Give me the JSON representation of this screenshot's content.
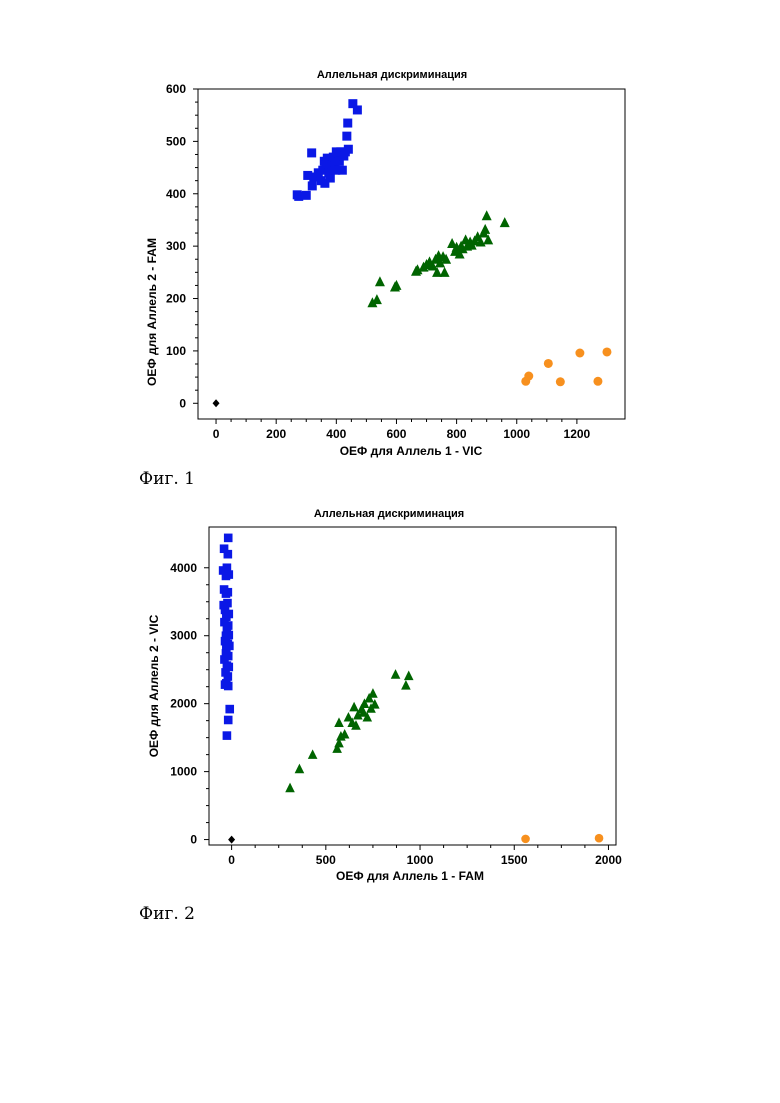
{
  "figures": [
    {
      "caption": "Фиг. 1"
    },
    {
      "caption": "Фиг. 2"
    }
  ],
  "chart_data": [
    {
      "type": "scatter",
      "title": "Аллельная дискриминация",
      "xlabel": "ОЕФ для Аллель 1 - VIC",
      "ylabel": "ОЕФ для Аллель 2 - FAM",
      "xlim": [
        -60,
        1360
      ],
      "ylim": [
        -30,
        600
      ],
      "xticks": [
        0,
        200,
        400,
        600,
        800,
        1000,
        1200
      ],
      "yticks": [
        0,
        100,
        200,
        300,
        400,
        500,
        600
      ],
      "grid": false,
      "series": [
        {
          "marker": "square",
          "color": "#0a18e6",
          "points": [
            [
              270,
              398
            ],
            [
              275,
              395
            ],
            [
              300,
              397
            ],
            [
              305,
              435
            ],
            [
              318,
              478
            ],
            [
              320,
              415
            ],
            [
              325,
              432
            ],
            [
              340,
              440
            ],
            [
              350,
              425
            ],
            [
              355,
              445
            ],
            [
              360,
              462
            ],
            [
              362,
              420
            ],
            [
              365,
              455
            ],
            [
              370,
              468
            ],
            [
              375,
              440
            ],
            [
              380,
              430
            ],
            [
              385,
              455
            ],
            [
              390,
              470
            ],
            [
              395,
              460
            ],
            [
              398,
              445
            ],
            [
              400,
              480
            ],
            [
              405,
              478
            ],
            [
              410,
              462
            ],
            [
              415,
              480
            ],
            [
              420,
              445
            ],
            [
              425,
              472
            ],
            [
              430,
              480
            ],
            [
              435,
              510
            ],
            [
              438,
              535
            ],
            [
              440,
              485
            ],
            [
              455,
              572
            ],
            [
              470,
              560
            ]
          ]
        },
        {
          "marker": "triangle",
          "color": "#006400",
          "points": [
            [
              520,
              192
            ],
            [
              535,
              198
            ],
            [
              545,
              232
            ],
            [
              595,
              222
            ],
            [
              600,
              225
            ],
            [
              665,
              252
            ],
            [
              670,
              255
            ],
            [
              690,
              260
            ],
            [
              700,
              265
            ],
            [
              710,
              270
            ],
            [
              720,
              262
            ],
            [
              730,
              275
            ],
            [
              735,
              250
            ],
            [
              740,
              282
            ],
            [
              745,
              268
            ],
            [
              755,
              280
            ],
            [
              760,
              250
            ],
            [
              765,
              275
            ],
            [
              785,
              305
            ],
            [
              795,
              290
            ],
            [
              800,
              298
            ],
            [
              810,
              285
            ],
            [
              815,
              300
            ],
            [
              820,
              295
            ],
            [
              830,
              312
            ],
            [
              835,
              300
            ],
            [
              845,
              308
            ],
            [
              850,
              302
            ],
            [
              860,
              310
            ],
            [
              870,
              318
            ],
            [
              880,
              308
            ],
            [
              890,
              325
            ],
            [
              895,
              332
            ],
            [
              900,
              358
            ],
            [
              905,
              312
            ],
            [
              960,
              345
            ]
          ]
        },
        {
          "marker": "circle",
          "color": "#f7901e",
          "points": [
            [
              1030,
              42
            ],
            [
              1040,
              52
            ],
            [
              1105,
              76
            ],
            [
              1145,
              41
            ],
            [
              1210,
              96
            ],
            [
              1270,
              42
            ],
            [
              1300,
              98
            ]
          ]
        },
        {
          "marker": "diamond",
          "color": "#000000",
          "points": [
            [
              0,
              0
            ]
          ]
        }
      ]
    },
    {
      "type": "scatter",
      "title": "Аллельная дискриминация",
      "xlabel": "ОЕФ для Аллель 1 - FAM",
      "ylabel": "ОЕФ для Аллель 2 - VIC",
      "xlim": [
        -120,
        2040
      ],
      "ylim": [
        -80,
        4600
      ],
      "xticks": [
        0,
        500,
        1000,
        1500,
        2000
      ],
      "yticks": [
        0,
        1000,
        2000,
        3000,
        4000
      ],
      "grid": false,
      "series": [
        {
          "marker": "square",
          "color": "#0a18e6",
          "points": [
            [
              -18,
              4440
            ],
            [
              -40,
              4280
            ],
            [
              -20,
              4200
            ],
            [
              -45,
              3960
            ],
            [
              -25,
              4000
            ],
            [
              -30,
              3880
            ],
            [
              -15,
              3900
            ],
            [
              -40,
              3680
            ],
            [
              -30,
              3620
            ],
            [
              -20,
              3640
            ],
            [
              -42,
              3450
            ],
            [
              -22,
              3480
            ],
            [
              -35,
              3380
            ],
            [
              -15,
              3320
            ],
            [
              -28,
              3280
            ],
            [
              -38,
              3200
            ],
            [
              -18,
              3150
            ],
            [
              -25,
              3080
            ],
            [
              -30,
              3000
            ],
            [
              -15,
              3010
            ],
            [
              -35,
              2920
            ],
            [
              -20,
              2880
            ],
            [
              -28,
              2820
            ],
            [
              -12,
              2850
            ],
            [
              -30,
              2740
            ],
            [
              -18,
              2700
            ],
            [
              -38,
              2650
            ],
            [
              -25,
              2560
            ],
            [
              -15,
              2540
            ],
            [
              -32,
              2460
            ],
            [
              -20,
              2400
            ],
            [
              -28,
              2300
            ],
            [
              -18,
              2260
            ],
            [
              -35,
              2280
            ],
            [
              -10,
              1920
            ],
            [
              -18,
              1760
            ],
            [
              -25,
              1530
            ]
          ]
        },
        {
          "marker": "triangle",
          "color": "#006400",
          "points": [
            [
              310,
              760
            ],
            [
              360,
              1040
            ],
            [
              430,
              1250
            ],
            [
              560,
              1340
            ],
            [
              570,
              1420
            ],
            [
              580,
              1520
            ],
            [
              570,
              1720
            ],
            [
              600,
              1550
            ],
            [
              620,
              1800
            ],
            [
              640,
              1720
            ],
            [
              650,
              1950
            ],
            [
              660,
              1680
            ],
            [
              670,
              1830
            ],
            [
              690,
              1920
            ],
            [
              700,
              1870
            ],
            [
              705,
              2000
            ],
            [
              720,
              1800
            ],
            [
              730,
              2080
            ],
            [
              740,
              1930
            ],
            [
              750,
              2150
            ],
            [
              760,
              1990
            ],
            [
              870,
              2430
            ],
            [
              925,
              2270
            ],
            [
              940,
              2410
            ]
          ]
        },
        {
          "marker": "circle",
          "color": "#f7901e",
          "points": [
            [
              1560,
              10
            ],
            [
              1950,
              20
            ]
          ]
        },
        {
          "marker": "diamond",
          "color": "#000000",
          "points": [
            [
              0,
              0
            ]
          ]
        }
      ]
    }
  ]
}
